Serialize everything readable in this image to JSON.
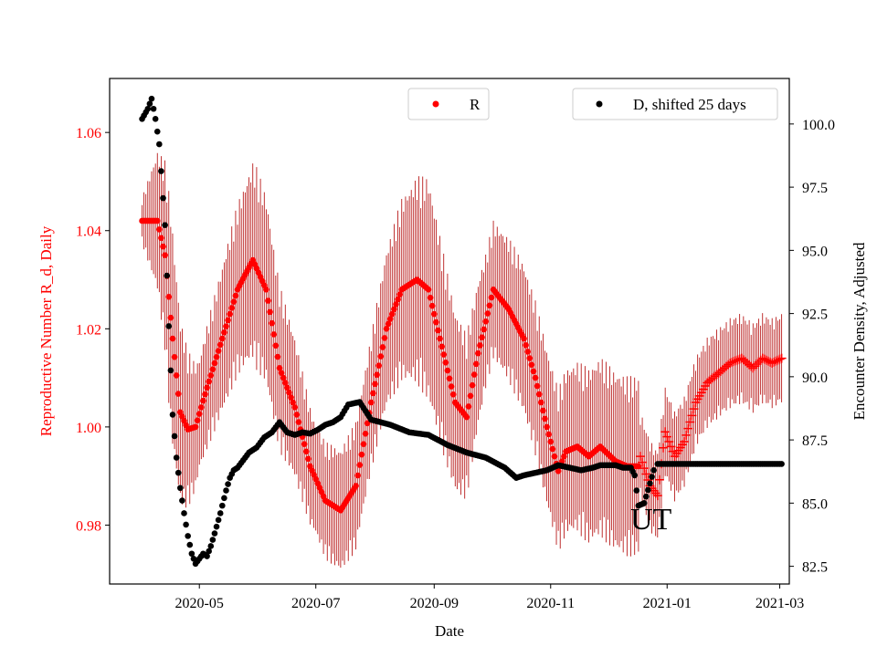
{
  "chart_data": {
    "type": "scatter",
    "title": "",
    "xlabel": "Date",
    "ylabel_left": "Reproductive Number R_d, Daily",
    "ylabel_right": "Encounter Density, Adjusted",
    "annotation": "UT",
    "xlim": [
      "2020-03-15",
      "2021-03-06"
    ],
    "ylim_left": [
      0.968,
      1.071
    ],
    "ylim_right": [
      81.8,
      101.8
    ],
    "xticks": [
      {
        "date": "2020-05-01",
        "label": "2020-05"
      },
      {
        "date": "2020-07-01",
        "label": "2020-07"
      },
      {
        "date": "2020-09-01",
        "label": "2020-09"
      },
      {
        "date": "2020-11-01",
        "label": "2020-11"
      },
      {
        "date": "2021-01-01",
        "label": "2021-01"
      },
      {
        "date": "2021-03-01",
        "label": "2021-03"
      }
    ],
    "yticks_left": [
      0.98,
      1.0,
      1.02,
      1.04,
      1.06
    ],
    "yticks_left_labels": [
      "0.98",
      "1.00",
      "1.02",
      "1.04",
      "1.06"
    ],
    "yticks_right": [
      82.5,
      85.0,
      87.5,
      90.0,
      92.5,
      95.0,
      97.5,
      100.0
    ],
    "yticks_right_labels": [
      "82.5",
      "85.0",
      "87.5",
      "90.0",
      "92.5",
      "95.0",
      "97.5",
      "100.0"
    ],
    "colors": {
      "R": "#ff0000",
      "R_errorbar": "#b00000",
      "D": "#000000",
      "left_axis": "#ff0000"
    },
    "series": [
      {
        "name": "R",
        "axis": "left",
        "marker": "dot",
        "legend_label": "R",
        "legend_position": "upper center",
        "knots_days": [
          0,
          8,
          12,
          16,
          20,
          24,
          28,
          34,
          42,
          50,
          58,
          65,
          72,
          80,
          88,
          96,
          104,
          112,
          120,
          128,
          136,
          144,
          150,
          156,
          164,
          170,
          176,
          184,
          192,
          200,
          206,
          212,
          218,
          222,
          228,
          234,
          240,
          248,
          254,
          260
        ],
        "knots_values": [
          1.042,
          1.042,
          1.035,
          1.018,
          1.003,
          0.9995,
          1.0,
          1.008,
          1.018,
          1.028,
          1.034,
          1.028,
          1.012,
          1.004,
          0.992,
          0.985,
          0.983,
          0.988,
          1.005,
          1.02,
          1.028,
          1.03,
          1.028,
          1.018,
          1.005,
          1.002,
          1.015,
          1.028,
          1.024,
          1.018,
          1.01,
          1.0,
          0.991,
          0.995,
          0.996,
          0.994,
          0.996,
          0.993,
          0.992,
          0.992
        ],
        "error_halfwidth_knots_days": [
          0,
          15,
          30,
          60,
          90,
          120,
          150,
          180,
          210,
          240,
          260
        ],
        "error_halfwidth_values": [
          0.004,
          0.02,
          0.01,
          0.018,
          0.01,
          0.012,
          0.02,
          0.012,
          0.014,
          0.016,
          0.016
        ]
      },
      {
        "name": "R_late",
        "axis": "left",
        "marker": "plus",
        "knots_days": [
          261,
          266,
          270,
          274,
          279,
          284,
          290,
          296,
          302,
          308,
          314,
          320,
          325,
          330,
          335
        ],
        "knots_values": [
          0.994,
          0.988,
          0.986,
          0.999,
          0.994,
          0.997,
          1.005,
          1.009,
          1.011,
          1.013,
          1.014,
          1.012,
          1.014,
          1.013,
          1.014
        ],
        "error_halfwidth": 0.008
      },
      {
        "name": "D, shifted 25 days",
        "axis": "right",
        "marker": "dot",
        "legend_label": "D, shifted 25 days",
        "legend_position": "upper right",
        "knots_days": [
          0,
          3,
          5,
          7,
          9,
          12,
          14,
          16,
          18,
          20,
          22,
          24,
          26,
          28,
          30,
          32,
          34,
          36,
          38,
          41,
          44,
          46,
          48,
          50,
          53,
          56,
          60,
          64,
          68,
          72,
          76,
          80,
          84,
          88,
          92,
          96,
          100,
          104,
          108,
          114,
          120,
          130,
          140,
          150,
          160,
          170,
          180,
          190,
          196,
          200,
          206,
          212,
          218,
          224,
          230,
          236,
          240,
          244,
          248,
          252,
          256,
          258,
          259,
          260,
          263,
          268
        ],
        "knots_values": [
          100.2,
          100.6,
          101.0,
          100.2,
          99.2,
          96.0,
          92.0,
          88.5,
          86.8,
          85.6,
          84.6,
          83.7,
          83.0,
          82.6,
          82.8,
          83.0,
          82.9,
          83.3,
          83.8,
          84.6,
          85.5,
          86.0,
          86.3,
          86.4,
          86.7,
          87.0,
          87.2,
          87.6,
          87.8,
          88.2,
          87.8,
          87.7,
          87.8,
          87.75,
          87.9,
          88.1,
          88.2,
          88.4,
          88.9,
          89.0,
          88.3,
          88.1,
          87.8,
          87.7,
          87.3,
          87.0,
          86.8,
          86.4,
          86.0,
          86.1,
          86.2,
          86.3,
          86.5,
          86.4,
          86.3,
          86.4,
          86.5,
          86.5,
          86.5,
          86.4,
          86.4,
          86.1,
          85.5,
          84.9,
          85.0,
          86.3
        ]
      },
      {
        "name": "D_flat",
        "axis": "right",
        "marker": "dot",
        "knots_days": [
          270,
          335
        ],
        "knots_values": [
          86.55,
          86.55
        ]
      }
    ],
    "start_date": "2020-04-01"
  }
}
